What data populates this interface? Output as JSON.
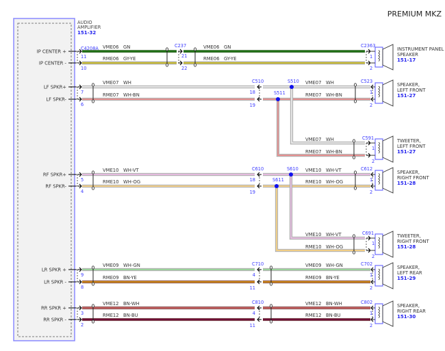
{
  "title": "PREMIUM MKZ",
  "amplifier": {
    "name_lines": [
      "AUDIO",
      "AMPLIFIER"
    ],
    "ref": "151-32",
    "connector": "C4208A"
  },
  "wire_colors": {
    "GN": {
      "base": "#2d7a1e",
      "stripe": "#1a6a10"
    },
    "GY-YE": {
      "base": "#9a9a8a",
      "stripe": "#e6d21a"
    },
    "WH": {
      "base": "#c4c4c4",
      "stripe": "#f2f2f2"
    },
    "WH-BN": {
      "base": "#c4c4c4",
      "stripe": "#f08080"
    },
    "WH-VT": {
      "base": "#c4c4c4",
      "stripe": "#f0b8e8"
    },
    "WH-OG": {
      "base": "#c8c8c8",
      "stripe": "#ffd070"
    },
    "WH-GN": {
      "base": "#c4c4c4",
      "stripe": "#8fd88f"
    },
    "BN-YE": {
      "base": "#8b2a10",
      "stripe": "#e8b020"
    },
    "BN-WH": {
      "base": "#8b3030",
      "stripe": "#d87070"
    },
    "BN-BU": {
      "base": "#701020",
      "stripe": "#701040"
    }
  },
  "circuits": [
    {
      "pins": [
        {
          "label": "IP CENTER +",
          "amp_pin": "11",
          "circuit": "VME06",
          "color": "GN",
          "end_pin": "1"
        },
        {
          "label": "IP CENTER -",
          "amp_pin": "10",
          "circuit": "RME06",
          "color": "GY-YE",
          "end_pin": "2"
        }
      ],
      "inline": {
        "connector": "C237",
        "pins": [
          "21",
          "22"
        ]
      },
      "end": {
        "connector": "C2363",
        "name_lines": [
          "INSTRUMENT PANEL",
          "SPEAKER"
        ],
        "ref": "151-17"
      }
    },
    {
      "pins": [
        {
          "label": "LF SPKR+",
          "amp_pin": "7",
          "circuit": "VME07",
          "color": "WH",
          "end_pin": "1"
        },
        {
          "label": "LF SPKR-",
          "amp_pin": "6",
          "circuit": "RME07",
          "color": "WH-BN",
          "end_pin": "2"
        }
      ],
      "inline": {
        "connector": "C510",
        "pins": [
          "18",
          "19"
        ]
      },
      "splices": [
        "S510",
        "S511"
      ],
      "end": {
        "connector": "C523",
        "name_lines": [
          "SPEAKER,",
          "LEFT FRONT"
        ],
        "ref": "151-27"
      },
      "tweeter": {
        "connector": "C591",
        "name_lines": [
          "TWEETER,",
          "LEFT FRONT"
        ],
        "ref": "151-27"
      }
    },
    {
      "pins": [
        {
          "label": "RF SPKR+",
          "amp_pin": "5",
          "circuit": "VME10",
          "color": "WH-VT",
          "end_pin": "1"
        },
        {
          "label": "RF SPKR-",
          "amp_pin": "4",
          "circuit": "RME10",
          "color": "WH-OG",
          "end_pin": "2"
        }
      ],
      "inline": {
        "connector": "C610",
        "pins": [
          "18",
          "19"
        ]
      },
      "splices": [
        "S610",
        "S611"
      ],
      "end": {
        "connector": "C612",
        "name_lines": [
          "SPEAKER,",
          "RIGHT FRONT"
        ],
        "ref": "151-28"
      },
      "tweeter": {
        "connector": "C691",
        "name_lines": [
          "TWEETER,",
          "RIGHT FRONT"
        ],
        "ref": "151-28"
      }
    },
    {
      "pins": [
        {
          "label": "LR SPKR +",
          "amp_pin": "9",
          "circuit": "VME09",
          "color": "WH-GN",
          "end_pin": "1"
        },
        {
          "label": "LR SPKR -",
          "amp_pin": "8",
          "circuit": "RME09",
          "color": "BN-YE",
          "end_pin": "2"
        }
      ],
      "inline": {
        "connector": "C710",
        "pins": [
          "4",
          "11"
        ]
      },
      "end": {
        "connector": "C702",
        "name_lines": [
          "SPEAKER,",
          "LEFT REAR"
        ],
        "ref": "151-29"
      }
    },
    {
      "pins": [
        {
          "label": "RR SPKR +",
          "amp_pin": "3",
          "circuit": "VME12",
          "color": "BN-WH",
          "end_pin": "1"
        },
        {
          "label": "RR SPKR -",
          "amp_pin": "2",
          "circuit": "RME12",
          "color": "BN-BU",
          "end_pin": "2"
        }
      ],
      "inline": {
        "connector": "C810",
        "pins": [
          "4",
          "11"
        ]
      },
      "end": {
        "connector": "C802",
        "name_lines": [
          "SPEAKER,",
          "RIGHT REAR"
        ],
        "ref": "151-30"
      }
    }
  ]
}
